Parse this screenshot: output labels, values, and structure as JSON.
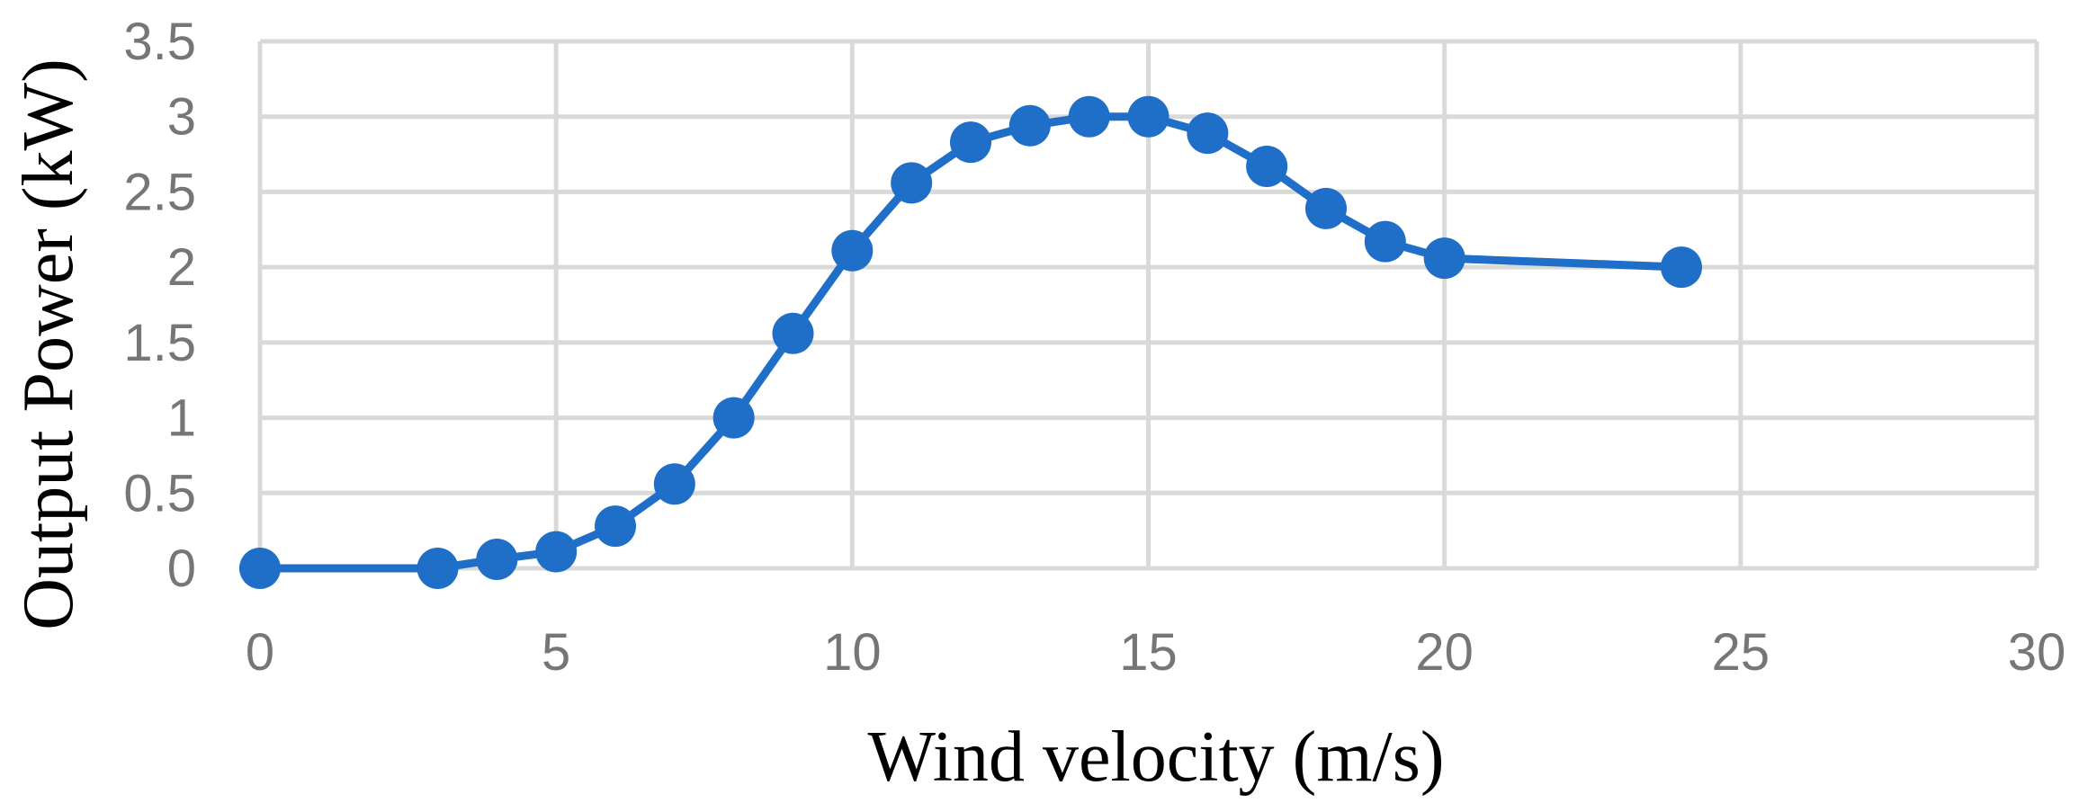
{
  "chart_data": {
    "type": "line",
    "title": "",
    "xlabel": "Wind velocity (m/s)",
    "ylabel": "Output Power (kW)",
    "xlim": [
      0,
      30
    ],
    "ylim": [
      0,
      3.5
    ],
    "x_ticks": [
      0,
      5,
      10,
      15,
      20,
      25,
      30
    ],
    "y_ticks": [
      0,
      0.5,
      1,
      1.5,
      2,
      2.5,
      3,
      3.5
    ],
    "x_tick_labels": [
      "0",
      "5",
      "10",
      "15",
      "20",
      "25",
      "30"
    ],
    "y_tick_labels": [
      "0",
      "0.5",
      "1",
      "1.5",
      "2",
      "2.5",
      "3",
      "3.5"
    ],
    "grid": true,
    "legend": "none",
    "series": [
      {
        "name": "Output Power",
        "color": "#1f6fc8",
        "x": [
          0,
          3,
          4,
          5,
          6,
          7,
          8,
          9,
          10,
          11,
          12,
          13,
          14,
          15,
          16,
          17,
          18,
          19,
          20,
          24
        ],
        "y": [
          0,
          0,
          0.06,
          0.11,
          0.28,
          0.56,
          1.0,
          1.56,
          2.11,
          2.56,
          2.83,
          2.94,
          3.0,
          3.0,
          2.89,
          2.67,
          2.39,
          2.17,
          2.06,
          2.0
        ]
      }
    ]
  }
}
